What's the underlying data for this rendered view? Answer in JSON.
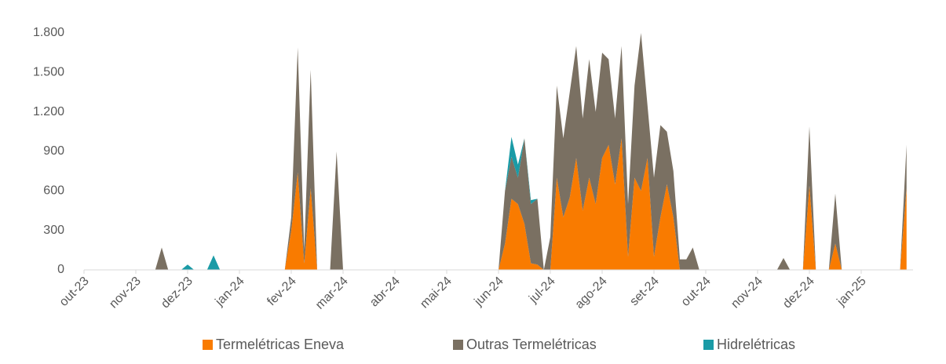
{
  "chart_data": {
    "type": "stacked_area",
    "x": [
      0,
      0.125,
      0.25,
      0.375,
      0.5,
      0.625,
      0.75,
      0.875,
      1,
      1.125,
      1.25,
      1.375,
      1.5,
      1.625,
      1.75,
      1.875,
      2,
      2.125,
      2.25,
      2.375,
      2.5,
      2.625,
      2.75,
      2.875,
      3,
      3.125,
      3.25,
      3.375,
      3.5,
      3.625,
      3.75,
      3.875,
      4,
      4.125,
      4.25,
      4.375,
      4.5,
      4.625,
      4.75,
      4.875,
      5,
      5.125,
      5.25,
      5.375,
      5.5,
      5.625,
      5.75,
      5.875,
      6,
      6.125,
      6.25,
      6.375,
      6.5,
      6.625,
      6.75,
      6.875,
      7,
      7.125,
      7.25,
      7.375,
      7.5,
      7.625,
      7.75,
      7.875,
      8,
      8.125,
      8.25,
      8.375,
      8.5,
      8.625,
      8.75,
      8.875,
      9,
      9.125,
      9.25,
      9.375,
      9.5,
      9.625,
      9.75,
      9.875,
      10,
      10.125,
      10.25,
      10.375,
      10.5,
      10.625,
      10.75,
      10.875,
      11,
      11.125,
      11.25,
      11.375,
      11.5,
      11.625,
      11.75,
      11.875,
      12,
      12.125,
      12.25,
      12.375,
      12.5,
      12.625,
      12.75,
      12.875,
      13,
      13.125,
      13.25,
      13.375,
      13.5,
      13.625,
      13.75,
      13.875,
      14,
      14.125,
      14.25,
      14.375,
      14.5,
      14.625,
      14.75,
      14.875,
      15,
      15.125,
      15.25,
      15.375,
      15.5,
      15.625,
      15.75,
      15.875
    ],
    "xlim": [
      0,
      16
    ],
    "xticks": [
      {
        "value": 0,
        "label": "out-23"
      },
      {
        "value": 1,
        "label": "nov-23"
      },
      {
        "value": 2,
        "label": "dez-23"
      },
      {
        "value": 3,
        "label": "jan-24"
      },
      {
        "value": 4,
        "label": "fev-24"
      },
      {
        "value": 5,
        "label": "mar-24"
      },
      {
        "value": 6,
        "label": "abr-24"
      },
      {
        "value": 7,
        "label": "mai-24"
      },
      {
        "value": 8,
        "label": "jun-24"
      },
      {
        "value": 9,
        "label": "jul-24"
      },
      {
        "value": 10,
        "label": "ago-24"
      },
      {
        "value": 11,
        "label": "set-24"
      },
      {
        "value": 12,
        "label": "out-24"
      },
      {
        "value": 13,
        "label": "nov-24"
      },
      {
        "value": 14,
        "label": "dez-24"
      },
      {
        "value": 15,
        "label": "jan-25"
      }
    ],
    "ylim": [
      0,
      1800
    ],
    "yticks": [
      0,
      300,
      600,
      900,
      {
        "value": 1200,
        "label": "1.200"
      },
      {
        "value": 1500,
        "label": "1.500"
      },
      {
        "value": 1800,
        "label": "1.800"
      }
    ],
    "grid": false,
    "legend": "bottom",
    "series": [
      {
        "name": "Termelétricas Eneva",
        "color": "#f97b00",
        "values": [
          0,
          0,
          0,
          0,
          0,
          0,
          0,
          0,
          0,
          0,
          0,
          0,
          0,
          0,
          0,
          0,
          0,
          0,
          0,
          0,
          0,
          0,
          0,
          0,
          0,
          0,
          0,
          0,
          0,
          0,
          0,
          0,
          300,
          740,
          50,
          620,
          0,
          0,
          0,
          0,
          0,
          0,
          0,
          0,
          0,
          0,
          0,
          0,
          0,
          0,
          0,
          0,
          0,
          0,
          0,
          0,
          0,
          0,
          0,
          0,
          0,
          0,
          0,
          0,
          0,
          200,
          540,
          500,
          350,
          50,
          40,
          0,
          0,
          700,
          400,
          550,
          850,
          450,
          700,
          500,
          850,
          950,
          650,
          1000,
          100,
          700,
          600,
          850,
          100,
          400,
          650,
          400,
          0,
          0,
          0,
          0,
          0,
          0,
          0,
          0,
          0,
          0,
          0,
          0,
          0,
          0,
          0,
          0,
          0,
          0,
          0,
          0,
          640,
          0,
          0,
          0,
          200,
          0,
          0,
          0,
          0,
          0,
          0,
          0,
          0,
          0,
          0,
          620
        ]
      },
      {
        "name": "Outras Termelétricas",
        "color": "#7a7062",
        "values": [
          0,
          0,
          0,
          0,
          0,
          0,
          0,
          0,
          0,
          0,
          0,
          0,
          170,
          0,
          0,
          0,
          0,
          0,
          0,
          0,
          0,
          0,
          0,
          0,
          0,
          0,
          0,
          0,
          0,
          0,
          0,
          0,
          100,
          950,
          100,
          900,
          0,
          0,
          0,
          900,
          0,
          0,
          0,
          0,
          0,
          0,
          0,
          0,
          0,
          0,
          0,
          0,
          0,
          0,
          0,
          0,
          0,
          0,
          0,
          0,
          0,
          0,
          0,
          0,
          0,
          400,
          320,
          200,
          650,
          450,
          500,
          0,
          250,
          700,
          600,
          800,
          850,
          700,
          900,
          700,
          800,
          650,
          500,
          700,
          400,
          700,
          1200,
          400,
          600,
          700,
          400,
          350,
          80,
          80,
          170,
          0,
          0,
          0,
          0,
          0,
          0,
          0,
          0,
          0,
          0,
          0,
          0,
          0,
          90,
          0,
          0,
          0,
          450,
          0,
          0,
          0,
          380,
          0,
          0,
          0,
          0,
          0,
          0,
          0,
          0,
          0,
          0,
          330
        ]
      },
      {
        "name": "Hidrelétricas",
        "color": "#1a9ba6",
        "values": [
          0,
          0,
          0,
          0,
          0,
          0,
          0,
          0,
          0,
          0,
          0,
          0,
          0,
          0,
          0,
          0,
          40,
          0,
          0,
          0,
          110,
          0,
          0,
          0,
          0,
          0,
          0,
          0,
          0,
          0,
          0,
          0,
          0,
          0,
          0,
          0,
          0,
          0,
          0,
          0,
          0,
          0,
          0,
          0,
          0,
          0,
          0,
          0,
          0,
          0,
          0,
          0,
          0,
          0,
          0,
          0,
          0,
          0,
          0,
          0,
          0,
          0,
          0,
          0,
          0,
          0,
          150,
          100,
          0,
          30,
          0,
          0,
          0,
          0,
          0,
          0,
          0,
          0,
          0,
          0,
          0,
          0,
          0,
          0,
          0,
          0,
          0,
          0,
          0,
          0,
          0,
          0,
          0,
          0,
          0,
          0,
          0,
          0,
          0,
          0,
          0,
          0,
          0,
          0,
          0,
          0,
          0,
          0,
          0,
          0,
          0,
          0,
          0,
          0,
          0,
          0,
          0,
          0,
          0,
          0,
          0,
          0,
          0,
          0,
          0,
          0,
          0,
          0
        ]
      }
    ]
  }
}
